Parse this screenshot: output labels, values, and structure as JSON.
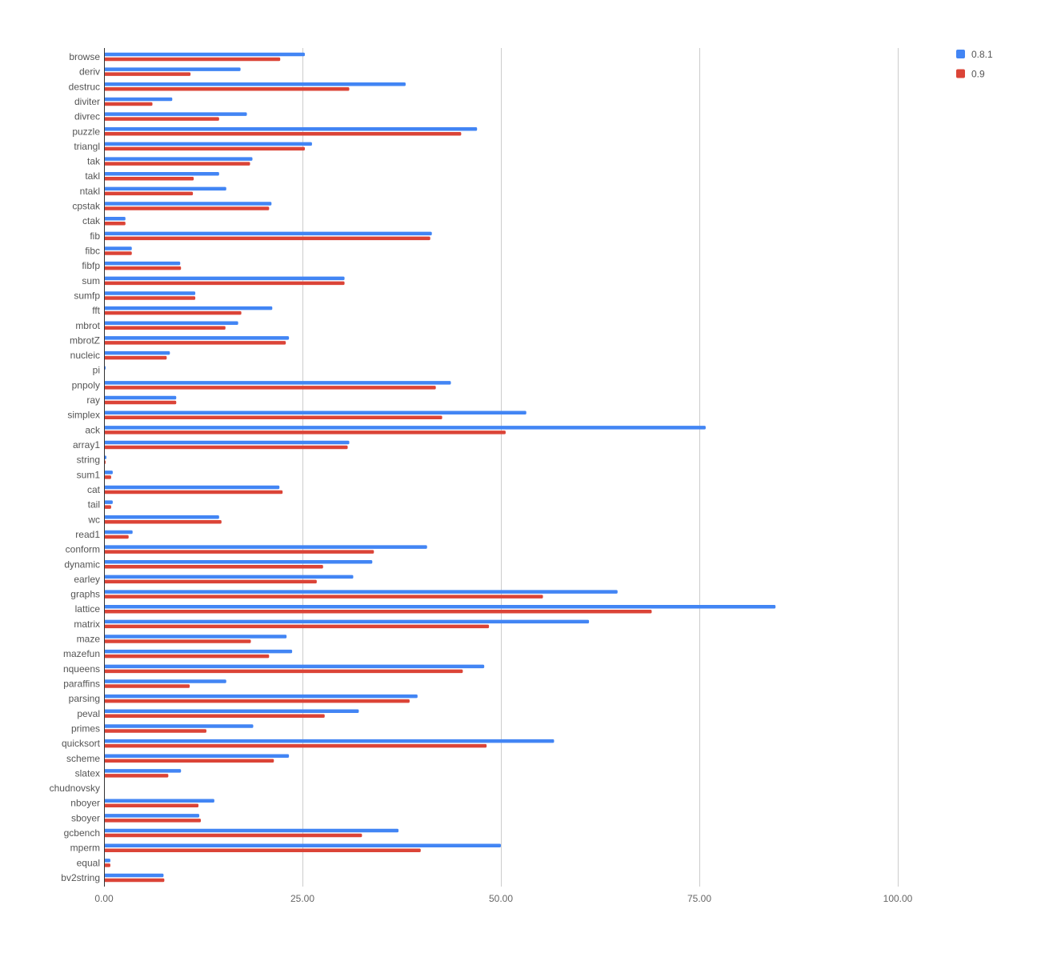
{
  "chart_data": {
    "type": "bar",
    "orientation": "horizontal",
    "categories": [
      "browse",
      "deriv",
      "destruc",
      "diviter",
      "divrec",
      "puzzle",
      "triangl",
      "tak",
      "takl",
      "ntakl",
      "cpstak",
      "ctak",
      "fib",
      "fibc",
      "fibfp",
      "sum",
      "sumfp",
      "fft",
      "mbrot",
      "mbrotZ",
      "nucleic",
      "pi",
      "pnpoly",
      "ray",
      "simplex",
      "ack",
      "array1",
      "string",
      "sum1",
      "cat",
      "tail",
      "wc",
      "read1",
      "conform",
      "dynamic",
      "earley",
      "graphs",
      "lattice",
      "matrix",
      "maze",
      "mazefun",
      "nqueens",
      "paraffins",
      "parsing",
      "peval",
      "primes",
      "quicksort",
      "scheme",
      "slatex",
      "chudnovsky",
      "nboyer",
      "sboyer",
      "gcbench",
      "mperm",
      "equal",
      "bv2string"
    ],
    "series": [
      {
        "name": "0.8.1",
        "color": "#4285f4",
        "values": [
          25.3,
          17.2,
          38.0,
          8.6,
          18.0,
          47.0,
          26.2,
          18.7,
          14.5,
          15.4,
          21.1,
          2.7,
          41.3,
          3.5,
          9.6,
          30.3,
          11.5,
          21.2,
          16.9,
          23.3,
          8.3,
          0.2,
          43.7,
          9.1,
          53.2,
          75.8,
          30.9,
          0.3,
          1.1,
          22.1,
          1.1,
          14.5,
          3.6,
          40.7,
          33.8,
          31.4,
          64.7,
          84.6,
          61.1,
          23.0,
          23.7,
          47.9,
          15.4,
          39.5,
          32.1,
          18.8,
          56.7,
          23.3,
          9.7,
          0.0,
          13.9,
          12.0,
          37.1,
          50.0,
          0.8,
          7.5
        ]
      },
      {
        "name": "0.9",
        "color": "#db4437",
        "values": [
          22.2,
          10.9,
          30.9,
          6.1,
          14.5,
          45.0,
          25.3,
          18.4,
          11.3,
          11.2,
          20.8,
          2.7,
          41.1,
          3.5,
          9.7,
          30.3,
          11.5,
          17.3,
          15.3,
          22.9,
          7.9,
          0.1,
          41.8,
          9.1,
          42.6,
          50.6,
          30.7,
          0.2,
          0.9,
          22.5,
          0.9,
          14.8,
          3.1,
          34.0,
          27.6,
          26.8,
          55.3,
          69.0,
          48.5,
          18.5,
          20.8,
          45.2,
          10.8,
          38.5,
          27.8,
          12.9,
          48.2,
          21.4,
          8.1,
          0.0,
          11.9,
          12.2,
          32.5,
          39.9,
          0.8,
          7.6
        ]
      }
    ],
    "x_axis": {
      "ticks": [
        "0.00",
        "25.00",
        "50.00",
        "75.00",
        "100.00"
      ],
      "tick_values": [
        0,
        25,
        50,
        75,
        100
      ]
    },
    "xlim": [
      0,
      100
    ],
    "grid": "vertical",
    "legend": {
      "position": "top-right"
    },
    "title": "",
    "xlabel": "",
    "ylabel": ""
  }
}
